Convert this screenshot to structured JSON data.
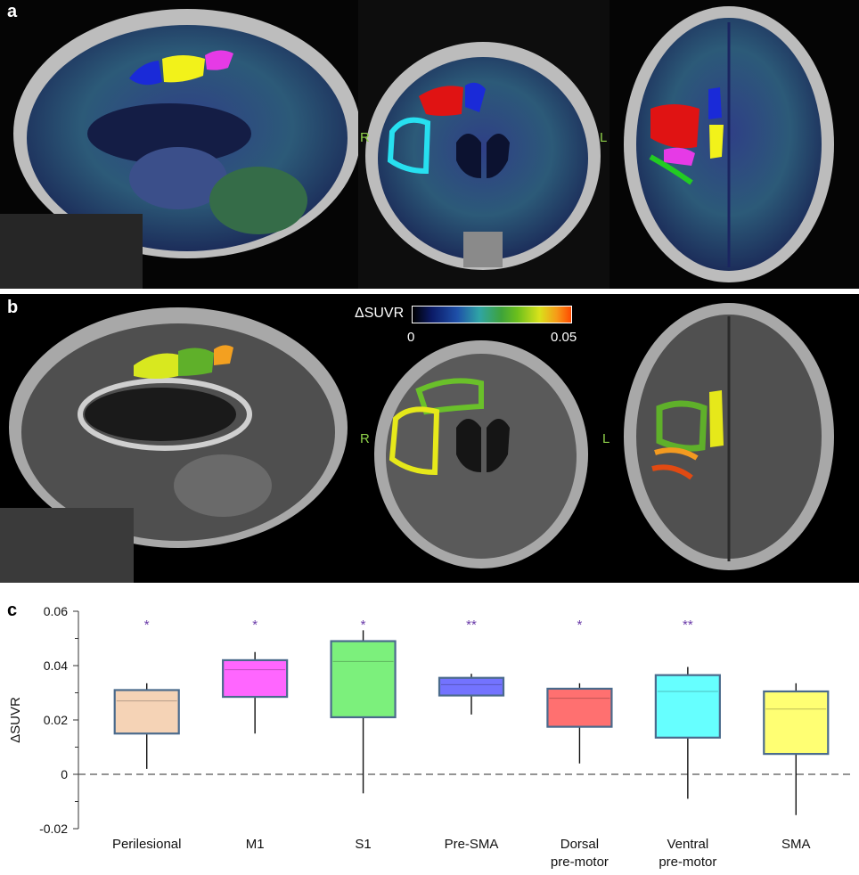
{
  "panels": {
    "a": {
      "letter": "a",
      "coronal_right": "R",
      "coronal_left": "L"
    },
    "b": {
      "letter": "b",
      "coronal_right": "R",
      "coronal_left": "L",
      "colorbar": {
        "title": "ΔSUVR",
        "min_label": "0",
        "max_label": "0.05"
      }
    },
    "c": {
      "letter": "c"
    }
  },
  "roi_colors": {
    "perilesional": "#f5d3b6",
    "m1": "#ff66ff",
    "s1": "#7cf07c",
    "pre_sma": "#7373ff",
    "dorsal_premotor": "#ff7070",
    "ventral_premotor": "#66ffff",
    "sma": "#ffff73"
  },
  "chart_data": {
    "type": "box",
    "ylabel": "ΔSUVR",
    "ylim": [
      -0.02,
      0.06
    ],
    "yticks": [
      "0.06",
      "0.04",
      "0.02",
      "0",
      "-0.02"
    ],
    "reference_line": 0,
    "categories": [
      {
        "label_line1": "Perilesional",
        "label_line2": "",
        "color": "#f5d3b6",
        "significance": "*",
        "whisker_low": 0.002,
        "q1": 0.015,
        "median": 0.027,
        "q3": 0.031,
        "whisker_high": 0.0335
      },
      {
        "label_line1": "M1",
        "label_line2": "",
        "color": "#ff66ff",
        "significance": "*",
        "whisker_low": 0.015,
        "q1": 0.0285,
        "median": 0.0385,
        "q3": 0.042,
        "whisker_high": 0.045
      },
      {
        "label_line1": "S1",
        "label_line2": "",
        "color": "#7cf07c",
        "significance": "*",
        "whisker_low": -0.007,
        "q1": 0.021,
        "median": 0.0415,
        "q3": 0.049,
        "whisker_high": 0.053
      },
      {
        "label_line1": "Pre-SMA",
        "label_line2": "",
        "color": "#7373ff",
        "significance": "**",
        "whisker_low": 0.022,
        "q1": 0.029,
        "median": 0.033,
        "q3": 0.0355,
        "whisker_high": 0.037
      },
      {
        "label_line1": "Dorsal",
        "label_line2": "pre-motor",
        "color": "#ff7070",
        "significance": "*",
        "whisker_low": 0.004,
        "q1": 0.0175,
        "median": 0.028,
        "q3": 0.0315,
        "whisker_high": 0.0335
      },
      {
        "label_line1": "Ventral",
        "label_line2": "pre-motor",
        "color": "#66ffff",
        "significance": "**",
        "whisker_low": -0.009,
        "q1": 0.0135,
        "median": 0.0305,
        "q3": 0.0365,
        "whisker_high": 0.0395
      },
      {
        "label_line1": "SMA",
        "label_line2": "",
        "color": "#ffff73",
        "significance": "",
        "whisker_low": -0.015,
        "q1": 0.0075,
        "median": 0.024,
        "q3": 0.0305,
        "whisker_high": 0.0335
      }
    ]
  }
}
